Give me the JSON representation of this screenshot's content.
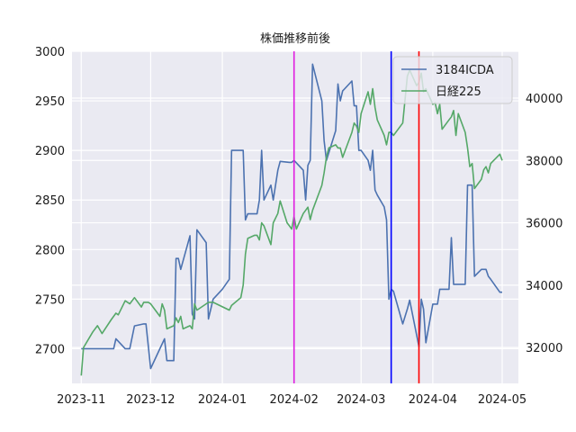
{
  "chart_data": {
    "type": "line",
    "title": "株価推移前後",
    "legend": {
      "placement": "top-right"
    },
    "grid": true,
    "x_axis": {
      "range": [
        "2023-10-28",
        "2024-05-08"
      ],
      "ticks": [
        "2023-11-01",
        "2023-12-01",
        "2024-01-01",
        "2024-02-01",
        "2024-03-01",
        "2024-04-01",
        "2024-05-01"
      ],
      "tick_labels": [
        "2023-11",
        "2023-12",
        "2024-01",
        "2024-02",
        "2024-03",
        "2024-04",
        "2024-05"
      ]
    },
    "y_left": {
      "range": [
        2665,
        3000
      ],
      "ticks": [
        2700,
        2750,
        2800,
        2850,
        2900,
        2950,
        3000
      ],
      "tick_labels": [
        "2700",
        "2750",
        "2800",
        "2850",
        "2900",
        "2950",
        "3000"
      ]
    },
    "y_right": {
      "range": [
        30850,
        41500
      ],
      "ticks": [
        32000,
        34000,
        36000,
        38000,
        40000
      ],
      "tick_labels": [
        "32000",
        "34000",
        "36000",
        "38000",
        "40000"
      ]
    },
    "vertical_lines": [
      {
        "date": "2024-02-01",
        "color": "#e01ee0"
      },
      {
        "date": "2024-03-14",
        "color": "#0000ff"
      },
      {
        "date": "2024-03-26",
        "color": "#ff0000"
      }
    ],
    "series": [
      {
        "name": "3184ICDA",
        "axis": "left",
        "color": "#4c72b0",
        "points": [
          [
            "2023-11-01",
            2700
          ],
          [
            "2023-11-06",
            2700
          ],
          [
            "2023-11-10",
            2700
          ],
          [
            "2023-11-15",
            2700
          ],
          [
            "2023-11-16",
            2710
          ],
          [
            "2023-11-20",
            2700
          ],
          [
            "2023-11-22",
            2700
          ],
          [
            "2023-11-24",
            2723
          ],
          [
            "2023-11-28",
            2725
          ],
          [
            "2023-11-29",
            2725
          ],
          [
            "2023-12-01",
            2680
          ],
          [
            "2023-12-05",
            2700
          ],
          [
            "2023-12-07",
            2710
          ],
          [
            "2023-12-08",
            2688
          ],
          [
            "2023-12-11",
            2688
          ],
          [
            "2023-12-12",
            2791
          ],
          [
            "2023-12-13",
            2791
          ],
          [
            "2023-12-14",
            2780
          ],
          [
            "2023-12-18",
            2814
          ],
          [
            "2023-12-19",
            2735
          ],
          [
            "2023-12-20",
            2730
          ],
          [
            "2023-12-21",
            2820
          ],
          [
            "2023-12-25",
            2807
          ],
          [
            "2023-12-26",
            2730
          ],
          [
            "2023-12-28",
            2750
          ],
          [
            "2024-01-01",
            2760
          ],
          [
            "2024-01-04",
            2770
          ],
          [
            "2024-01-05",
            2900
          ],
          [
            "2024-01-10",
            2900
          ],
          [
            "2024-01-11",
            2830
          ],
          [
            "2024-01-12",
            2836
          ],
          [
            "2024-01-16",
            2836
          ],
          [
            "2024-01-17",
            2850
          ],
          [
            "2024-01-18",
            2900
          ],
          [
            "2024-01-19",
            2850
          ],
          [
            "2024-01-22",
            2865
          ],
          [
            "2024-01-23",
            2850
          ],
          [
            "2024-01-25",
            2880
          ],
          [
            "2024-01-26",
            2889
          ],
          [
            "2024-01-30",
            2888
          ],
          [
            "2024-01-31",
            2888
          ],
          [
            "2024-02-01",
            2890
          ],
          [
            "2024-02-05",
            2880
          ],
          [
            "2024-02-06",
            2850
          ],
          [
            "2024-02-07",
            2885
          ],
          [
            "2024-02-08",
            2890
          ],
          [
            "2024-02-09",
            2987
          ],
          [
            "2024-02-13",
            2950
          ],
          [
            "2024-02-14",
            2910
          ],
          [
            "2024-02-15",
            2890
          ],
          [
            "2024-02-19",
            2920
          ],
          [
            "2024-02-20",
            2967
          ],
          [
            "2024-02-21",
            2950
          ],
          [
            "2024-02-22",
            2960
          ],
          [
            "2024-02-26",
            2970
          ],
          [
            "2024-02-27",
            2945
          ],
          [
            "2024-02-28",
            2945
          ],
          [
            "2024-02-29",
            2900
          ],
          [
            "2024-03-01",
            2900
          ],
          [
            "2024-03-04",
            2890
          ],
          [
            "2024-03-05",
            2880
          ],
          [
            "2024-03-06",
            2900
          ],
          [
            "2024-03-07",
            2860
          ],
          [
            "2024-03-08",
            2855
          ],
          [
            "2024-03-11",
            2843
          ],
          [
            "2024-03-12",
            2830
          ],
          [
            "2024-03-13",
            2750
          ],
          [
            "2024-03-14",
            2760
          ],
          [
            "2024-03-15",
            2758
          ],
          [
            "2024-03-19",
            2725
          ],
          [
            "2024-03-21",
            2740
          ],
          [
            "2024-03-22",
            2749
          ],
          [
            "2024-03-26",
            2702
          ],
          [
            "2024-03-27",
            2750
          ],
          [
            "2024-03-28",
            2740
          ],
          [
            "2024-03-29",
            2706
          ],
          [
            "2024-04-01",
            2745
          ],
          [
            "2024-04-03",
            2745
          ],
          [
            "2024-04-04",
            2760
          ],
          [
            "2024-04-05",
            2760
          ],
          [
            "2024-04-08",
            2760
          ],
          [
            "2024-04-09",
            2812
          ],
          [
            "2024-04-10",
            2765
          ],
          [
            "2024-04-12",
            2765
          ],
          [
            "2024-04-15",
            2765
          ],
          [
            "2024-04-16",
            2865
          ],
          [
            "2024-04-18",
            2865
          ],
          [
            "2024-04-19",
            2773
          ],
          [
            "2024-04-22",
            2780
          ],
          [
            "2024-04-24",
            2780
          ],
          [
            "2024-04-25",
            2773
          ],
          [
            "2024-04-26",
            2770
          ],
          [
            "2024-04-30",
            2757
          ],
          [
            "2024-05-01",
            2757
          ]
        ]
      },
      {
        "name": "日経225",
        "axis": "right",
        "color": "#55a868",
        "points": [
          [
            "2023-11-01",
            31100
          ],
          [
            "2023-11-02",
            32000
          ],
          [
            "2023-11-06",
            32500
          ],
          [
            "2023-11-08",
            32700
          ],
          [
            "2023-11-10",
            32450
          ],
          [
            "2023-11-14",
            32900
          ],
          [
            "2023-11-16",
            33100
          ],
          [
            "2023-11-17",
            33050
          ],
          [
            "2023-11-20",
            33500
          ],
          [
            "2023-11-22",
            33400
          ],
          [
            "2023-11-24",
            33600
          ],
          [
            "2023-11-27",
            33300
          ],
          [
            "2023-11-28",
            33450
          ],
          [
            "2023-11-30",
            33450
          ],
          [
            "2023-12-01",
            33400
          ],
          [
            "2023-12-04",
            33100
          ],
          [
            "2023-12-05",
            33000
          ],
          [
            "2023-12-06",
            33400
          ],
          [
            "2023-12-07",
            33200
          ],
          [
            "2023-12-08",
            32600
          ],
          [
            "2023-12-11",
            32700
          ],
          [
            "2023-12-12",
            32950
          ],
          [
            "2023-12-13",
            32800
          ],
          [
            "2023-12-14",
            33000
          ],
          [
            "2023-12-15",
            32600
          ],
          [
            "2023-12-18",
            32700
          ],
          [
            "2023-12-19",
            32600
          ],
          [
            "2023-12-20",
            33400
          ],
          [
            "2023-12-21",
            33200
          ],
          [
            "2023-12-25",
            33400
          ],
          [
            "2023-12-26",
            33450
          ],
          [
            "2023-12-28",
            33450
          ],
          [
            "2024-01-04",
            33200
          ],
          [
            "2024-01-05",
            33350
          ],
          [
            "2024-01-09",
            33600
          ],
          [
            "2024-01-10",
            34000
          ],
          [
            "2024-01-11",
            35000
          ],
          [
            "2024-01-12",
            35500
          ],
          [
            "2024-01-15",
            35600
          ],
          [
            "2024-01-16",
            35600
          ],
          [
            "2024-01-17",
            35450
          ],
          [
            "2024-01-18",
            36000
          ],
          [
            "2024-01-19",
            35900
          ],
          [
            "2024-01-22",
            35300
          ],
          [
            "2024-01-23",
            36000
          ],
          [
            "2024-01-25",
            36300
          ],
          [
            "2024-01-26",
            36700
          ],
          [
            "2024-01-29",
            36000
          ],
          [
            "2024-01-30",
            35900
          ],
          [
            "2024-01-31",
            35800
          ],
          [
            "2024-02-01",
            36200
          ],
          [
            "2024-02-02",
            35800
          ],
          [
            "2024-02-05",
            36300
          ],
          [
            "2024-02-06",
            36400
          ],
          [
            "2024-02-07",
            36500
          ],
          [
            "2024-02-08",
            36100
          ],
          [
            "2024-02-09",
            36400
          ],
          [
            "2024-02-13",
            37200
          ],
          [
            "2024-02-14",
            37600
          ],
          [
            "2024-02-15",
            38100
          ],
          [
            "2024-02-16",
            38400
          ],
          [
            "2024-02-19",
            38500
          ],
          [
            "2024-02-20",
            38400
          ],
          [
            "2024-02-21",
            38400
          ],
          [
            "2024-02-22",
            38100
          ],
          [
            "2024-02-26",
            38900
          ],
          [
            "2024-02-27",
            39200
          ],
          [
            "2024-02-28",
            39100
          ],
          [
            "2024-02-29",
            38900
          ],
          [
            "2024-03-01",
            39500
          ],
          [
            "2024-03-04",
            40200
          ],
          [
            "2024-03-05",
            39800
          ],
          [
            "2024-03-06",
            40300
          ],
          [
            "2024-03-07",
            39700
          ],
          [
            "2024-03-08",
            39300
          ],
          [
            "2024-03-11",
            38800
          ],
          [
            "2024-03-12",
            38500
          ],
          [
            "2024-03-13",
            38900
          ],
          [
            "2024-03-14",
            38900
          ],
          [
            "2024-03-15",
            38800
          ],
          [
            "2024-03-18",
            39100
          ],
          [
            "2024-03-19",
            39200
          ],
          [
            "2024-03-21",
            40700
          ],
          [
            "2024-03-22",
            40900
          ],
          [
            "2024-03-25",
            40400
          ],
          [
            "2024-03-26",
            40500
          ],
          [
            "2024-03-27",
            40800
          ],
          [
            "2024-03-28",
            40200
          ],
          [
            "2024-03-29",
            40300
          ],
          [
            "2024-04-01",
            39800
          ],
          [
            "2024-04-02",
            39850
          ],
          [
            "2024-04-03",
            39500
          ],
          [
            "2024-04-04",
            39800
          ],
          [
            "2024-04-05",
            39000
          ],
          [
            "2024-04-08",
            39300
          ],
          [
            "2024-04-09",
            39400
          ],
          [
            "2024-04-10",
            39600
          ],
          [
            "2024-04-11",
            38800
          ],
          [
            "2024-04-12",
            39500
          ],
          [
            "2024-04-15",
            38900
          ],
          [
            "2024-04-16",
            38400
          ],
          [
            "2024-04-17",
            37800
          ],
          [
            "2024-04-18",
            37900
          ],
          [
            "2024-04-19",
            37100
          ],
          [
            "2024-04-22",
            37400
          ],
          [
            "2024-04-23",
            37700
          ],
          [
            "2024-04-24",
            37800
          ],
          [
            "2024-04-25",
            37600
          ],
          [
            "2024-04-26",
            37900
          ],
          [
            "2024-04-30",
            38200
          ],
          [
            "2024-05-01",
            38000
          ]
        ]
      }
    ]
  }
}
